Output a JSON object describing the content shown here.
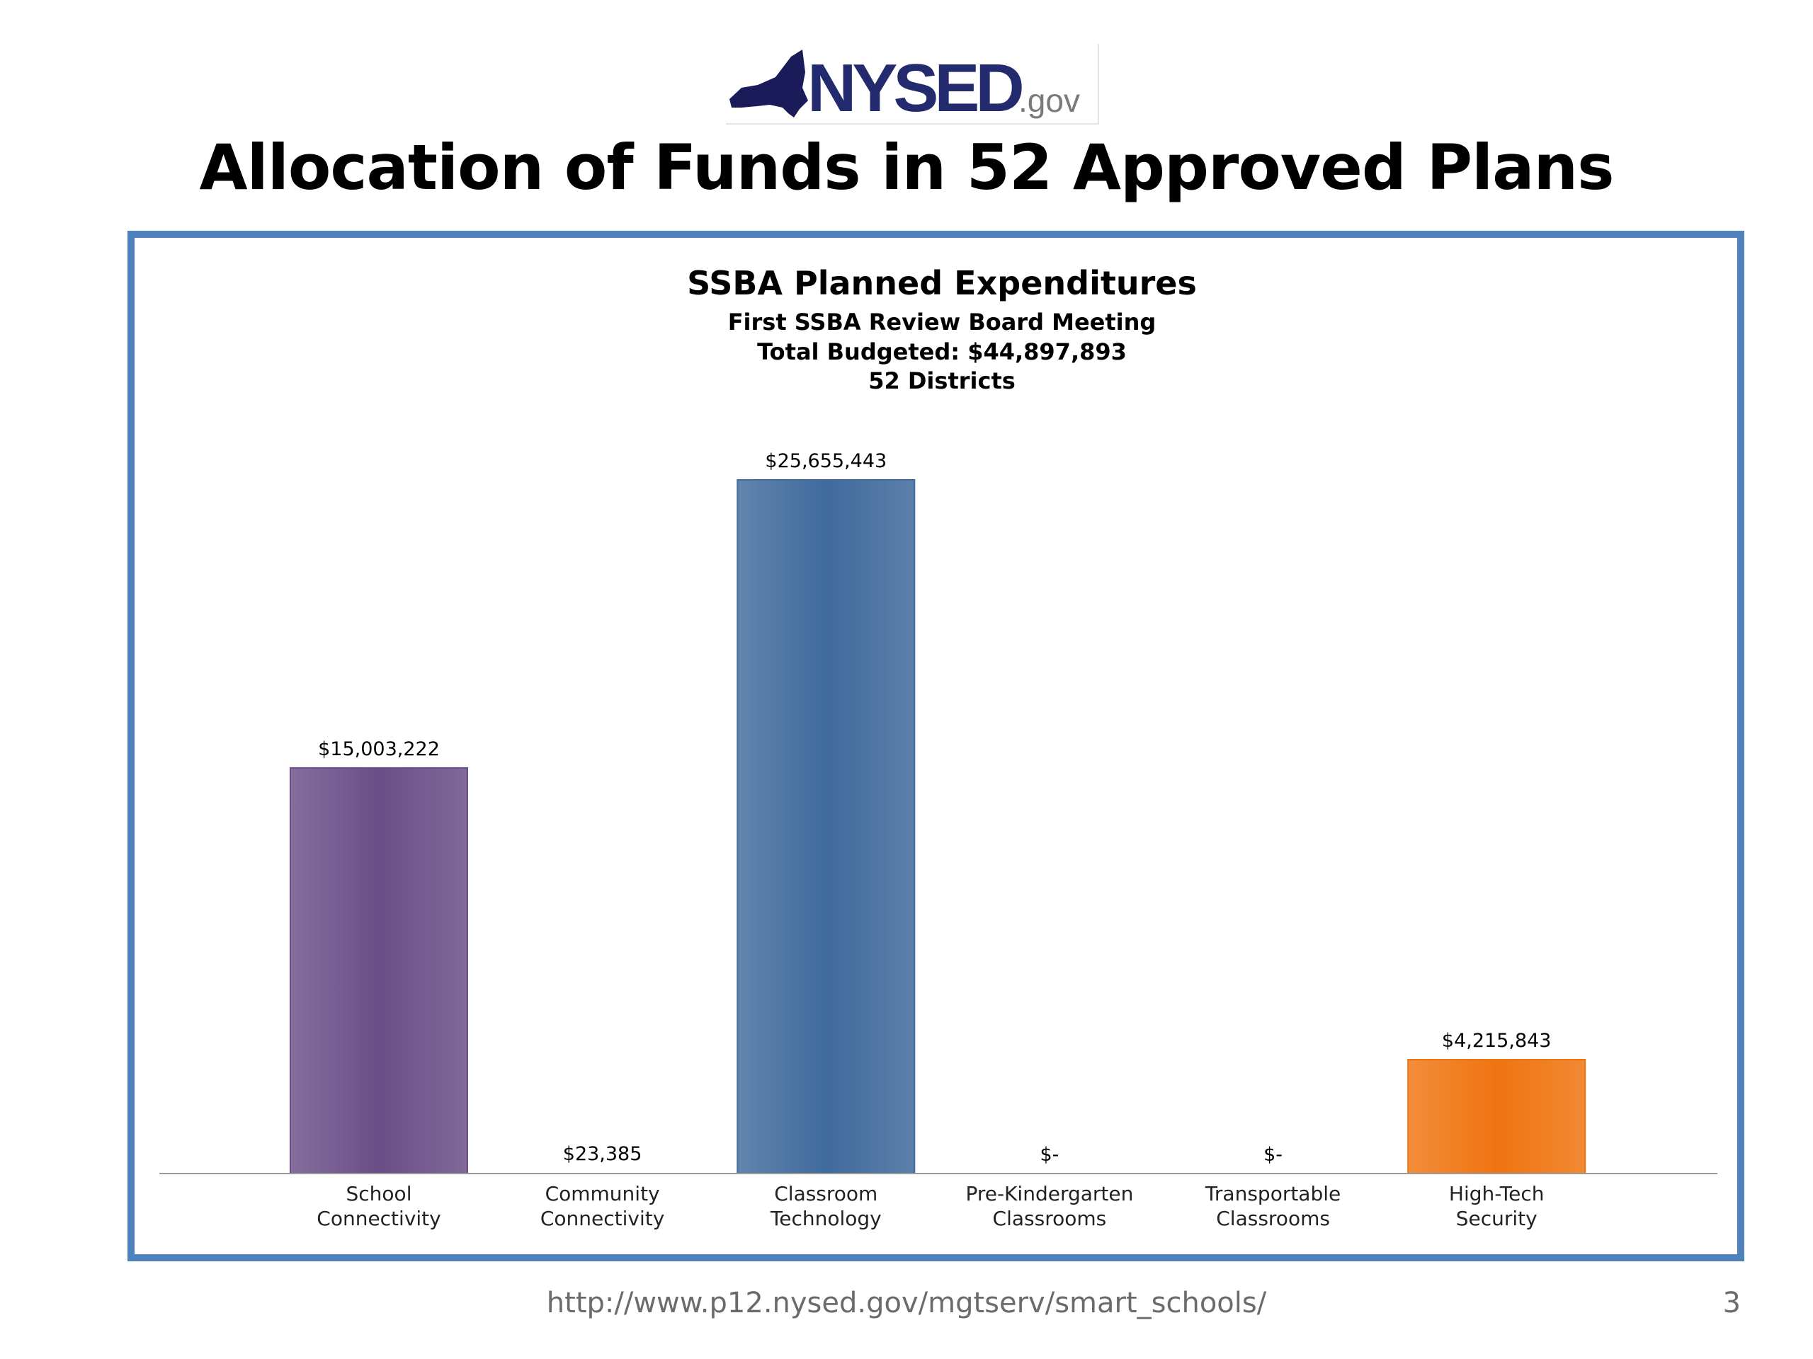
{
  "logo": {
    "text": "NYSED",
    "suffix": ".gov"
  },
  "slide": {
    "title": "Allocation of Funds in 52 Approved Plans",
    "footer_url": "http://www.p12.nysed.gov/mgtserv/smart_schools/",
    "page_number": "3"
  },
  "colors": {
    "frame": "#4f81bd",
    "bars": [
      "#6a4e87",
      "#6a4e87",
      "#3f6a9c",
      "#3f6a9c",
      "#3f6a9c",
      "#ef7410"
    ]
  },
  "chart_data": {
    "type": "bar",
    "title": "SSBA Planned Expenditures",
    "subtitle_lines": [
      "First SSBA Review Board Meeting",
      "Total Budgeted: $44,897,893",
      "52 Districts"
    ],
    "categories": [
      [
        "School",
        "Connectivity"
      ],
      [
        "Community",
        "Connectivity"
      ],
      [
        "Classroom",
        "Technology"
      ],
      [
        "Pre-Kindergarten",
        "Classrooms"
      ],
      [
        "Transportable",
        "Classrooms"
      ],
      [
        "High-Tech",
        "Security"
      ]
    ],
    "values": [
      15003222,
      23385,
      25655443,
      0,
      0,
      4215843
    ],
    "data_labels": [
      "$15,003,222",
      "$23,385",
      "$25,655,443",
      "$-",
      "$-",
      "$4,215,843"
    ],
    "xlabel": "",
    "ylabel": "",
    "ylim": [
      0,
      25655443
    ],
    "grid": false,
    "legend": "none"
  }
}
